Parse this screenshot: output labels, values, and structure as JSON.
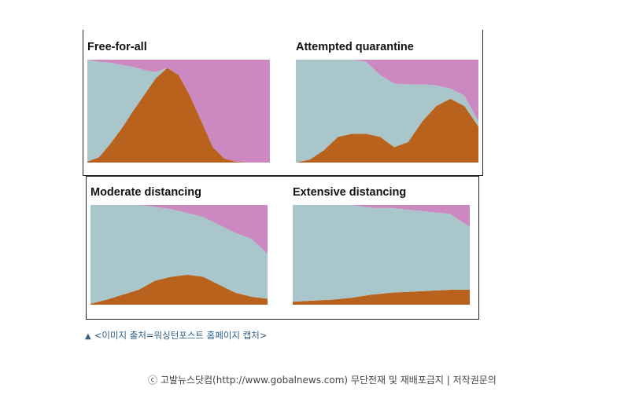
{
  "caption": {
    "marker": "▲",
    "text": "<이미지 출처=워싱턴포스트 홈페이지 캡처>"
  },
  "footer": {
    "text": "ⓒ 고발뉴스닷컴(http://www.gobalnews.com) 무단전재 및 재배포금지 | 저작권문의"
  },
  "colors": {
    "sick": "#b8621e",
    "healthy": "#a9c6cb",
    "recovered": "#cc88c0"
  },
  "chart_data": [
    {
      "type": "area",
      "title": "Free-for-all",
      "stacked": true,
      "axes_shown": false,
      "ylim": [
        0,
        1
      ],
      "series": [
        {
          "key": "sick",
          "values": [
            0.01,
            0.05,
            0.18,
            0.33,
            0.5,
            0.66,
            0.82,
            0.92,
            0.85,
            0.65,
            0.4,
            0.15,
            0.04,
            0.01,
            0.0,
            0.0,
            0.0
          ]
        },
        {
          "key": "healthy",
          "values": [
            0.99,
            0.93,
            0.79,
            0.62,
            0.43,
            0.24,
            0.06,
            0.0,
            0.0,
            0.0,
            0.0,
            0.0,
            0.0,
            0.0,
            0.0,
            0.0,
            0.0
          ]
        },
        {
          "key": "recovered",
          "values": [
            0.0,
            0.02,
            0.03,
            0.05,
            0.07,
            0.1,
            0.12,
            0.08,
            0.15,
            0.35,
            0.6,
            0.85,
            0.96,
            0.99,
            1.0,
            1.0,
            1.0
          ]
        }
      ]
    },
    {
      "type": "area",
      "title": "Attempted quarantine",
      "stacked": true,
      "axes_shown": false,
      "ylim": [
        0,
        1
      ],
      "series": [
        {
          "key": "sick",
          "values": [
            0.0,
            0.03,
            0.12,
            0.25,
            0.28,
            0.28,
            0.25,
            0.15,
            0.2,
            0.4,
            0.55,
            0.62,
            0.55,
            0.35
          ]
        },
        {
          "key": "healthy",
          "values": [
            1.0,
            0.97,
            0.88,
            0.75,
            0.72,
            0.7,
            0.6,
            0.62,
            0.56,
            0.36,
            0.2,
            0.1,
            0.1,
            0.05
          ]
        },
        {
          "key": "recovered",
          "values": [
            0.0,
            0.0,
            0.0,
            0.0,
            0.0,
            0.02,
            0.15,
            0.23,
            0.24,
            0.24,
            0.25,
            0.28,
            0.35,
            0.6
          ]
        }
      ]
    },
    {
      "type": "area",
      "title": "Moderate distancing",
      "stacked": true,
      "axes_shown": false,
      "ylim": [
        0,
        1
      ],
      "series": [
        {
          "key": "sick",
          "values": [
            0.01,
            0.05,
            0.1,
            0.15,
            0.24,
            0.28,
            0.3,
            0.28,
            0.2,
            0.12,
            0.08,
            0.06
          ]
        },
        {
          "key": "healthy",
          "values": [
            0.99,
            0.95,
            0.9,
            0.85,
            0.74,
            0.68,
            0.62,
            0.6,
            0.6,
            0.6,
            0.58,
            0.45
          ]
        },
        {
          "key": "recovered",
          "values": [
            0.0,
            0.0,
            0.0,
            0.0,
            0.02,
            0.04,
            0.08,
            0.12,
            0.2,
            0.28,
            0.34,
            0.49
          ]
        }
      ]
    },
    {
      "type": "area",
      "title": "Extensive distancing",
      "stacked": true,
      "axes_shown": false,
      "ylim": [
        0,
        1
      ],
      "series": [
        {
          "key": "sick",
          "values": [
            0.03,
            0.04,
            0.05,
            0.07,
            0.1,
            0.12,
            0.13,
            0.14,
            0.15,
            0.15
          ]
        },
        {
          "key": "healthy",
          "values": [
            0.97,
            0.96,
            0.95,
            0.93,
            0.87,
            0.85,
            0.82,
            0.79,
            0.76,
            0.63
          ]
        },
        {
          "key": "recovered",
          "values": [
            0.0,
            0.0,
            0.0,
            0.0,
            0.03,
            0.03,
            0.05,
            0.07,
            0.09,
            0.22
          ]
        }
      ]
    }
  ]
}
